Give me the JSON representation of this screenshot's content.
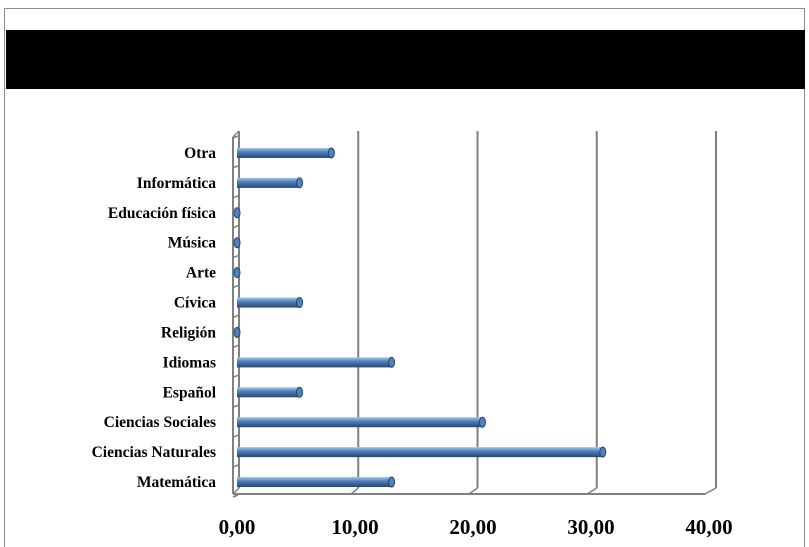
{
  "chart_data": {
    "type": "bar",
    "orientation": "horizontal",
    "title": "",
    "categories": [
      "Otra",
      "Informática",
      "Educación física",
      "Música",
      "Arte",
      "Cívica",
      "Religión",
      "Idiomas",
      "Español",
      "Ciencias Sociales",
      "Ciencias Naturales",
      "Matemática"
    ],
    "values": [
      8.0,
      5.3,
      0.0,
      0.0,
      0.0,
      5.3,
      0.0,
      13.1,
      5.3,
      20.8,
      31.0,
      13.1
    ],
    "xlim": [
      0,
      40
    ],
    "xticks": [
      "0,00",
      "10,00",
      "20,00",
      "30,00",
      "40,00"
    ],
    "grid": true,
    "legend": "none",
    "bar_color": "#4f81bd",
    "bar_highlight": "#a9c4e8",
    "bar_shadow": "#27456f",
    "grid_color": "#808080",
    "title_bar_color": "#000000"
  }
}
